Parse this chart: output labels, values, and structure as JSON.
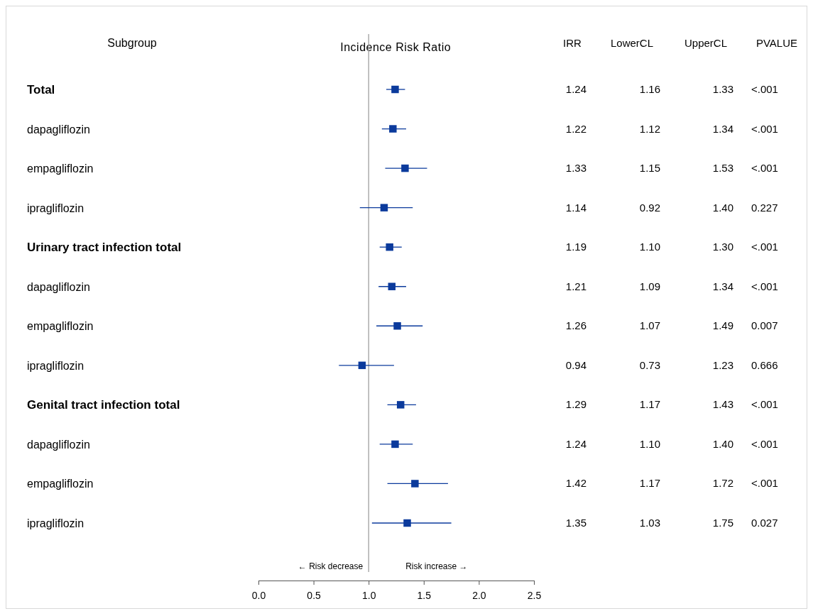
{
  "chart_data": {
    "type": "scatter",
    "orientation": "horizontal",
    "title": "Incidence Risk Ratio",
    "ylabel": "Subgroup",
    "categories": [
      "Total",
      "dapagliflozin",
      "empagliflozin",
      "ipragliflozin",
      "Urinary tract infection total",
      "dapagliflozin",
      "empagliflozin",
      "ipragliflozin",
      "Genital tract infection total",
      "dapagliflozin",
      "empagliflozin",
      "ipragliflozin"
    ],
    "series": [
      {
        "color": "#0b3a9c",
        "values": [
          1.24,
          1.22,
          1.33,
          1.14,
          1.19,
          1.21,
          1.26,
          0.94,
          1.29,
          1.24,
          1.42,
          1.35
        ],
        "value_labels": [
          "1.24",
          "1.22",
          "1.33",
          "1.14",
          "1.19",
          "1.21",
          "1.26",
          "0.94",
          "1.29",
          "1.24",
          "1.42",
          "1.35"
        ],
        "errors": [
          [
            1.16,
            1.33
          ],
          [
            1.12,
            1.34
          ],
          [
            1.15,
            1.53
          ],
          [
            0.92,
            1.4
          ],
          [
            1.1,
            1.3
          ],
          [
            1.09,
            1.34
          ],
          [
            1.07,
            1.49
          ],
          [
            0.73,
            1.23
          ],
          [
            1.17,
            1.43
          ],
          [
            1.1,
            1.4
          ],
          [
            1.17,
            1.72
          ],
          [
            1.03,
            1.75
          ]
        ]
      }
    ],
    "marker": "square",
    "xlim": [
      0,
      2.5
    ],
    "xticks": [
      {
        "value": 0,
        "label": "0.0"
      },
      {
        "value": 0.5,
        "label": "0.5"
      },
      {
        "value": 1,
        "label": "1.0"
      },
      {
        "value": 1.5,
        "label": "1.5"
      },
      {
        "value": 2,
        "label": "2.0"
      },
      {
        "value": 2.5,
        "label": "2.5"
      }
    ],
    "ref_lines": [
      {
        "axis": "x",
        "value": 1,
        "color": "#a0a0a0"
      }
    ],
    "annotations": [
      "← Risk decrease",
      "Risk increase →",
      "IRR",
      "LowerCL",
      "UpperCL",
      "PVALUE",
      "1.16",
      "1.33",
      "<.001",
      "1.12",
      "1.34",
      "<.001",
      "1.15",
      "1.53",
      "<.001",
      "0.92",
      "1.40",
      "0.227",
      "1.10",
      "1.30",
      "<.001",
      "1.09",
      "1.34",
      "<.001",
      "1.07",
      "1.49",
      "0.007",
      "0.73",
      "1.23",
      "0.666",
      "1.17",
      "1.43",
      "<.001",
      "1.10",
      "1.40",
      "<.001",
      "1.17",
      "1.72",
      "<.001",
      "1.03",
      "1.75",
      "0.027"
    ]
  }
}
